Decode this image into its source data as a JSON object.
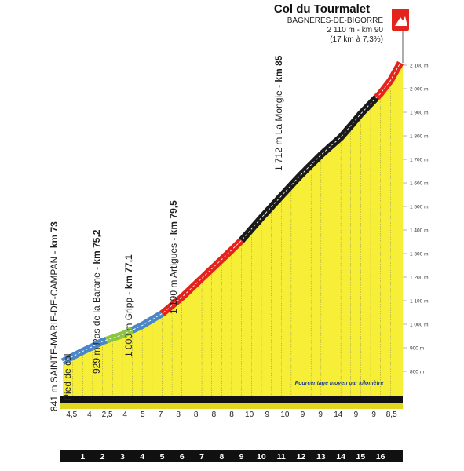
{
  "summit": {
    "name": "Col du Tourmalet",
    "town": "BAGNÈRES-DE-BIGORRE",
    "altitude_km": "2 110 m - km 90",
    "avg": "(17 km à 7,3%)",
    "flag_icon": "summit-flag-icon"
  },
  "note": "Pourcentage moyen par kilomètre",
  "colors": {
    "fill": "#f7ef37",
    "mid_fill": "#fafa6e",
    "base": "#111111",
    "blue": "#4a86c8",
    "green": "#8cc63f",
    "red": "#e3231c",
    "black": "#1a1a1a",
    "flag": "#e3231c"
  },
  "chart_data": {
    "type": "area",
    "title": "Col du Tourmalet",
    "xlabel": "",
    "ylabel": "",
    "ylim": [
      800,
      2100
    ],
    "yticks": [
      "800 m",
      "900 m",
      "1 000 m",
      "1 100 m",
      "1 200 m",
      "1 300 m",
      "1 400 m",
      "1 500 m",
      "1 600 m",
      "1 700 m",
      "1 800 m",
      "1 900 m",
      "2 000 m",
      "2 100 m"
    ],
    "km_labels": [
      "1",
      "2",
      "3",
      "4",
      "5",
      "6",
      "7",
      "8",
      "9",
      "10",
      "11",
      "12",
      "13",
      "14",
      "15",
      "16"
    ],
    "percent_labels": [
      "4,5",
      "4",
      "2,5",
      "4",
      "5",
      "7",
      "8",
      "8",
      "8",
      "8",
      "10",
      "9",
      "10",
      "9",
      "9",
      "14",
      "9",
      "9",
      "8,5"
    ],
    "percent_values": [
      4.5,
      4,
      2.5,
      4,
      5,
      7,
      8,
      8,
      8,
      8,
      10,
      9,
      10,
      9,
      9,
      14,
      9,
      9,
      8.5
    ],
    "x_km": [
      0,
      0.5,
      1,
      1.5,
      2,
      2.5,
      3,
      3.5,
      4,
      4.5,
      5,
      5.5,
      6,
      6.5,
      7,
      7.5,
      8,
      8.5,
      9,
      9.5,
      10,
      10.5,
      11,
      11.5,
      12,
      12.5,
      13,
      13.5,
      14,
      14.5,
      15,
      15.5,
      16,
      16.5,
      17
    ],
    "altitude_m": [
      841,
      863,
      885,
      905,
      927,
      941,
      955,
      975,
      995,
      1020,
      1045,
      1080,
      1115,
      1155,
      1195,
      1235,
      1275,
      1315,
      1356,
      1404,
      1452,
      1498,
      1544,
      1590,
      1635,
      1677,
      1719,
      1757,
      1794,
      1843,
      1893,
      1937,
      1980,
      2035,
      2110
    ],
    "segments": [
      {
        "color": "blue",
        "from_km": 0,
        "to_km": 2.2
      },
      {
        "color": "green",
        "from_km": 2.2,
        "to_km": 3.5
      },
      {
        "color": "blue",
        "from_km": 3.5,
        "to_km": 5.0
      },
      {
        "color": "red",
        "from_km": 5.0,
        "to_km": 9.0
      },
      {
        "color": "black",
        "from_km": 9.0,
        "to_km": 15.8
      },
      {
        "color": "red",
        "from_km": 15.8,
        "to_km": 17
      }
    ],
    "waypoints": [
      {
        "text": "841 m SAINTE-MARIE-DE-CAMPAN - ",
        "km": "km 73",
        "sub": "Pied de col"
      },
      {
        "text": "929 m Pas de la Barane - ",
        "km": "km 75,2",
        "sub": ""
      },
      {
        "text": "1 000 m Gripp - ",
        "km": "km 77,1",
        "sub": ""
      },
      {
        "text": "1 190 m Artigues - ",
        "km": "km 79,5",
        "sub": ""
      },
      {
        "text": "1 712 m La Mongie - ",
        "km": "km 85",
        "sub": ""
      }
    ]
  }
}
